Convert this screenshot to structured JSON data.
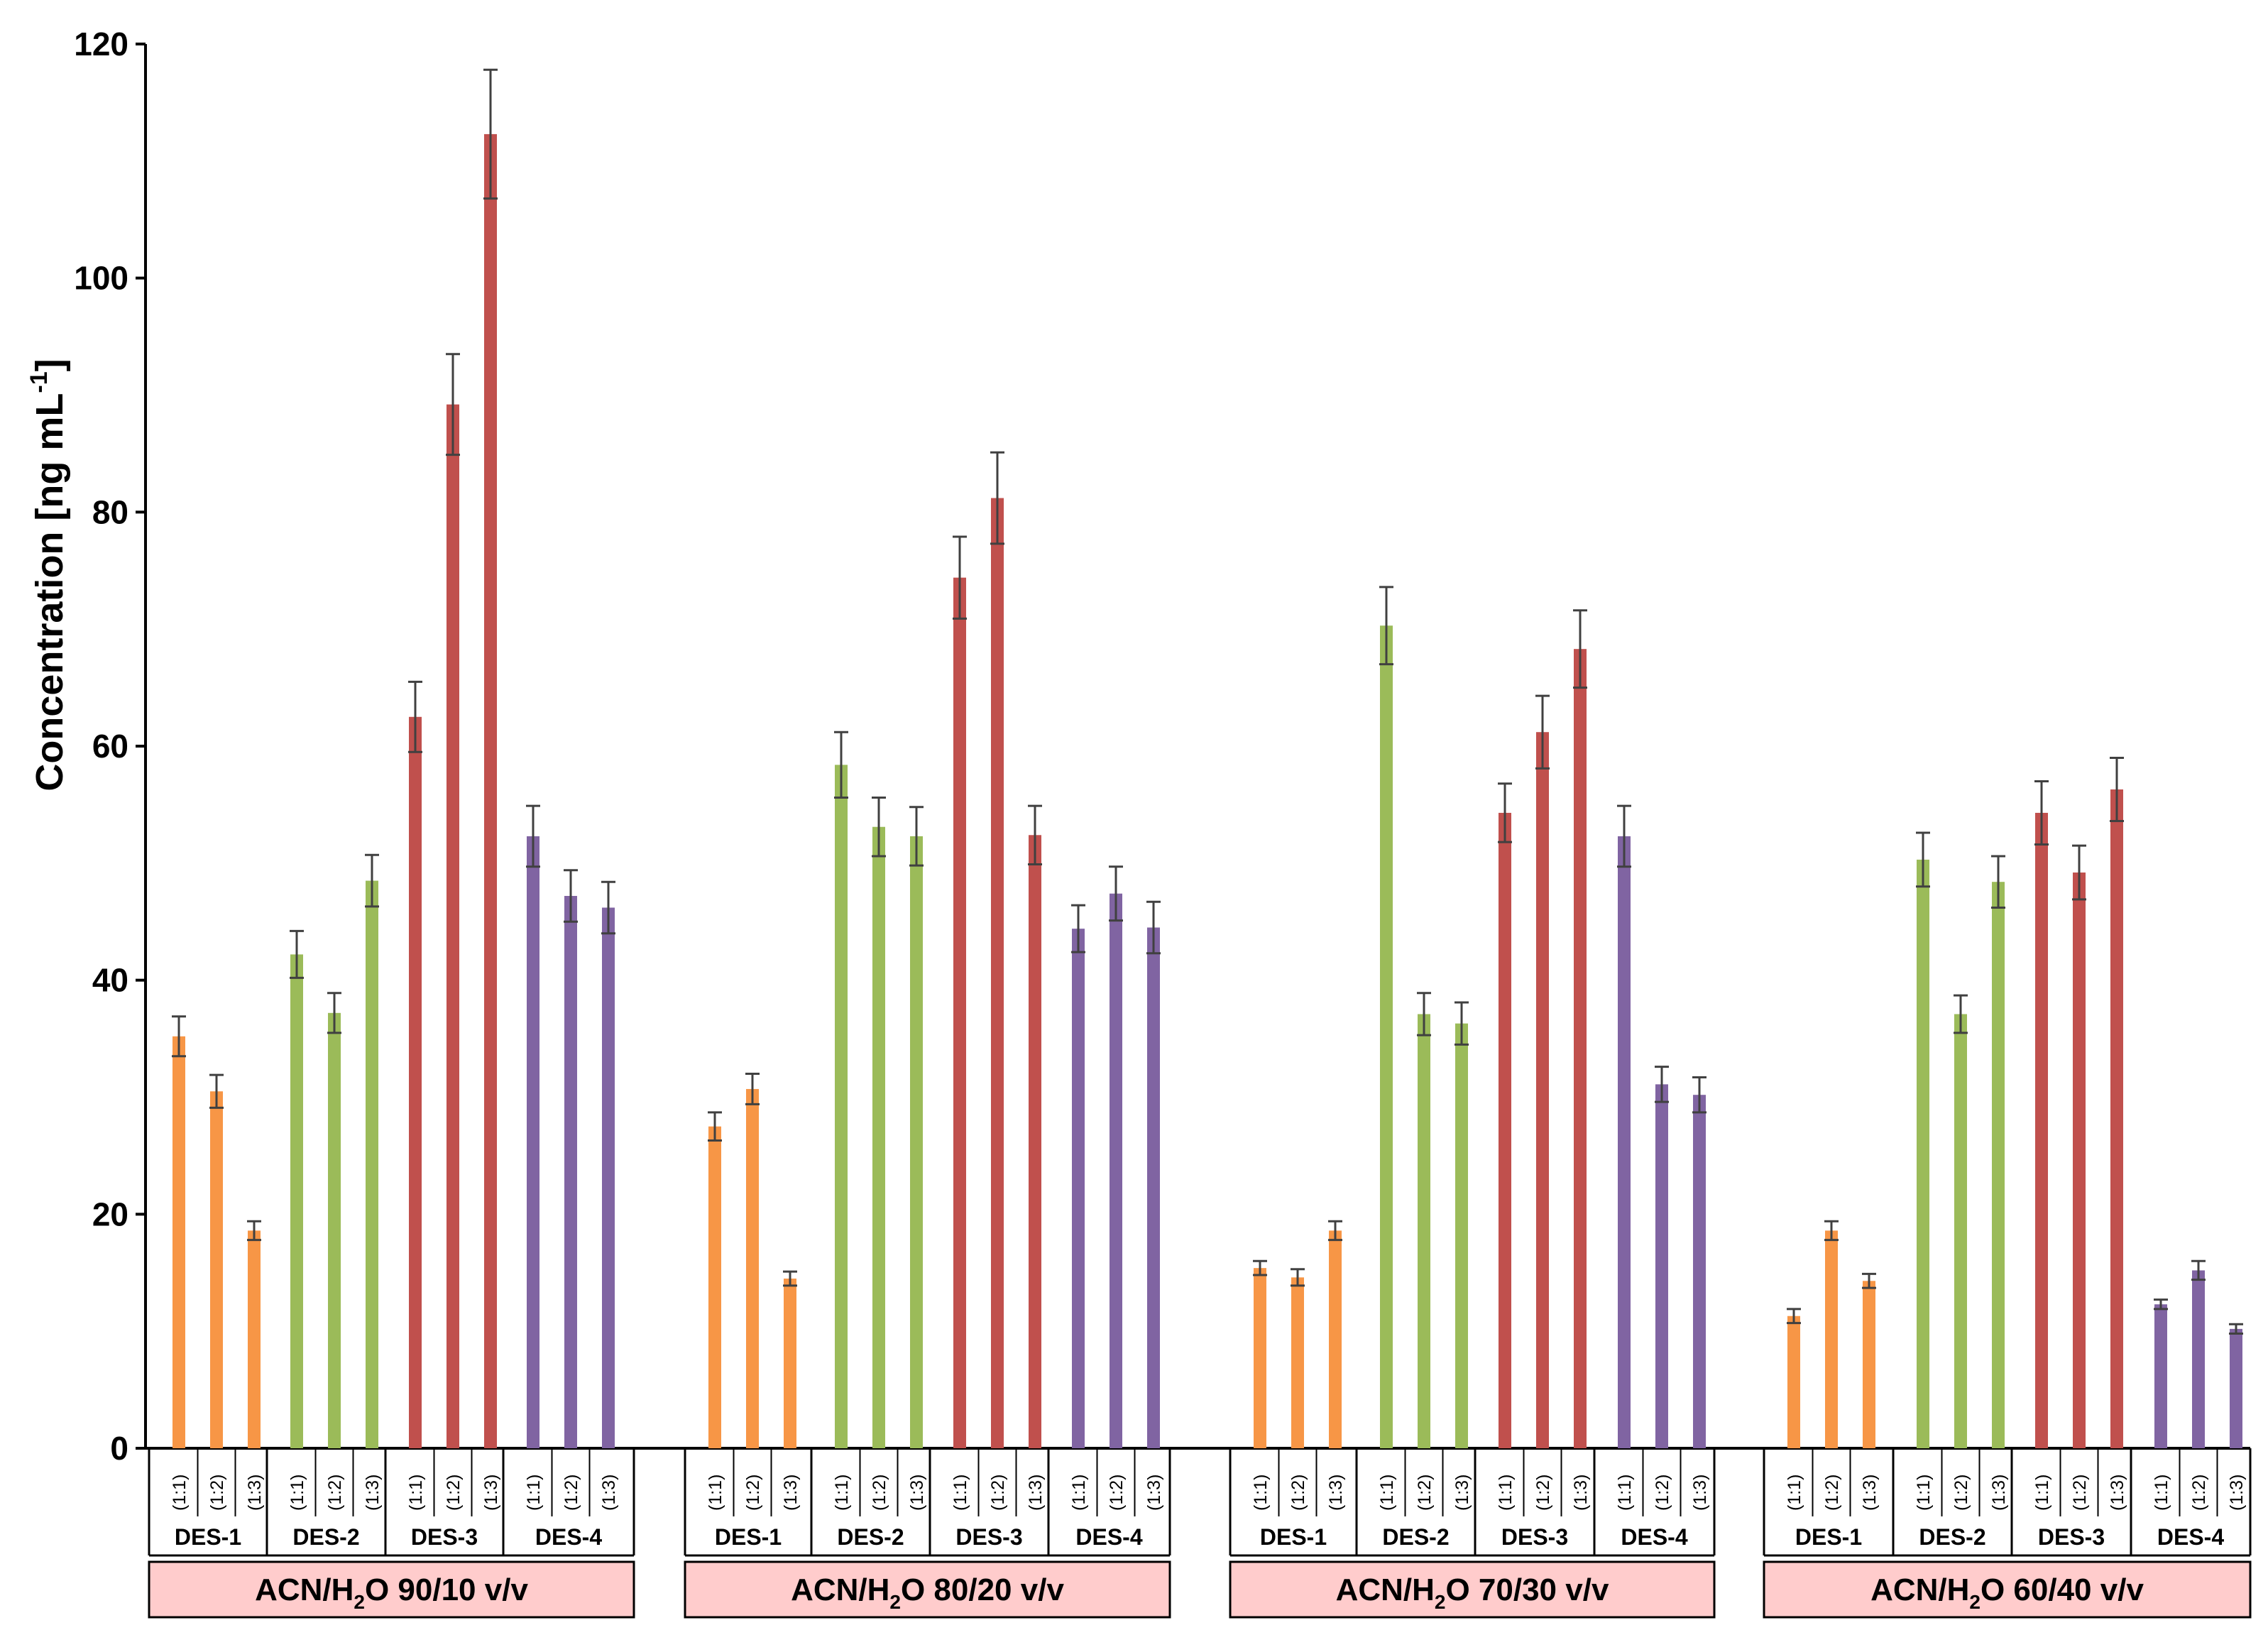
{
  "chart_data": {
    "type": "bar",
    "title": "",
    "xlabel": "",
    "ylabel": {
      "text": "Concentration [ng mL",
      "superscript": "-1",
      "suffix": "]"
    },
    "ylim": [
      0,
      120
    ],
    "yticks": [
      0,
      20,
      40,
      60,
      80,
      100,
      120
    ],
    "grid": false,
    "groups": [
      {
        "label": {
          "pre": "ACN/H",
          "sub": "2",
          "post": "O 90/10 v/v"
        }
      },
      {
        "label": {
          "pre": "ACN/H",
          "sub": "2",
          "post": "O 80/20 v/v"
        }
      },
      {
        "label": {
          "pre": "ACN/H",
          "sub": "2",
          "post": "O 70/30 v/v"
        }
      },
      {
        "label": {
          "pre": "ACN/H",
          "sub": "2",
          "post": "O 60/40 v/v"
        }
      }
    ],
    "ratios": [
      "(1:1)",
      "(1:2)",
      "(1:3)"
    ],
    "series": [
      {
        "name": "DES-1",
        "color": "#f79646",
        "values": [
          [
            35.2,
            30.5,
            18.6
          ],
          [
            27.5,
            30.7,
            14.5
          ],
          [
            15.4,
            14.6,
            18.6
          ],
          [
            11.3,
            18.6,
            14.3
          ]
        ],
        "errors": [
          [
            1.7,
            1.4,
            0.8
          ],
          [
            1.2,
            1.3,
            0.6
          ],
          [
            0.6,
            0.7,
            0.8
          ],
          [
            0.6,
            0.8,
            0.6
          ]
        ]
      },
      {
        "name": "DES-2",
        "color": "#9bbb59",
        "values": [
          [
            42.2,
            37.2,
            48.5
          ],
          [
            58.4,
            53.1,
            52.3
          ],
          [
            70.3,
            37.1,
            36.3
          ],
          [
            50.3,
            37.1,
            48.4
          ]
        ],
        "errors": [
          [
            2.0,
            1.7,
            2.2
          ],
          [
            2.8,
            2.5,
            2.5
          ],
          [
            3.3,
            1.8,
            1.8
          ],
          [
            2.3,
            1.6,
            2.2
          ]
        ]
      },
      {
        "name": "DES-3",
        "color": "#c0504d",
        "values": [
          [
            62.5,
            89.2,
            112.3
          ],
          [
            74.4,
            81.2,
            52.4
          ],
          [
            54.3,
            61.2,
            68.3
          ],
          [
            54.3,
            49.2,
            56.3
          ]
        ],
        "errors": [
          [
            3.0,
            4.3,
            5.5
          ],
          [
            3.5,
            3.9,
            2.5
          ],
          [
            2.5,
            3.1,
            3.3
          ],
          [
            2.7,
            2.3,
            2.7
          ]
        ]
      },
      {
        "name": "DES-4",
        "color": "#8064a2",
        "values": [
          [
            52.3,
            47.2,
            46.2
          ],
          [
            44.4,
            47.4,
            44.5
          ],
          [
            52.3,
            31.1,
            30.2
          ],
          [
            12.3,
            15.2,
            10.2
          ]
        ],
        "errors": [
          [
            2.6,
            2.2,
            2.2
          ],
          [
            2.0,
            2.3,
            2.2
          ],
          [
            2.6,
            1.5,
            1.5
          ],
          [
            0.4,
            0.8,
            0.4
          ]
        ]
      }
    ]
  },
  "colors": {
    "condition_box": "#ffcccc",
    "error_bar": "#404040",
    "axis": "#000000"
  }
}
